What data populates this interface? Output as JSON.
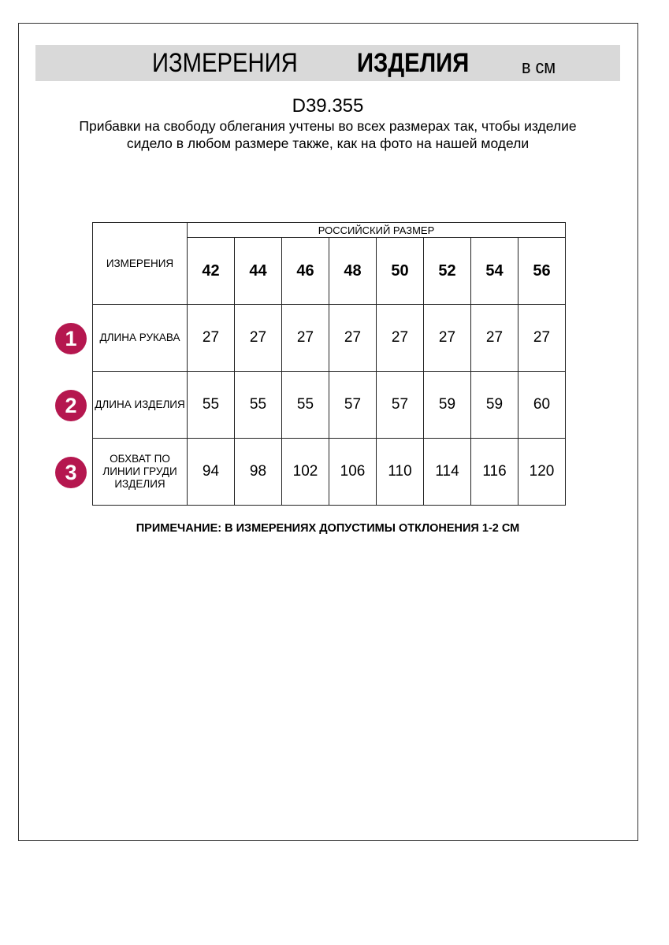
{
  "header": {
    "title_light": "ИЗМЕРЕНИЯ",
    "title_bold": "ИЗДЕЛИЯ",
    "units": "в см"
  },
  "article_code": "D39.355",
  "description": "Прибавки на свободу облегания учтены во всех размерах так, чтобы изделие сидело в любом размере также, как на фото на нашей модели",
  "table": {
    "corner_label": "ИЗМЕРЕНИЯ",
    "group_header": "РОССИЙСКИЙ РАЗМЕР",
    "sizes": [
      "42",
      "44",
      "46",
      "48",
      "50",
      "52",
      "54",
      "56"
    ],
    "rows": [
      {
        "marker": "1",
        "label": "ДЛИНА РУКАВА",
        "values": [
          "27",
          "27",
          "27",
          "27",
          "27",
          "27",
          "27",
          "27"
        ]
      },
      {
        "marker": "2",
        "label": "ДЛИНА ИЗДЕЛИЯ",
        "values": [
          "55",
          "55",
          "55",
          "57",
          "57",
          "59",
          "59",
          "60"
        ]
      },
      {
        "marker": "3",
        "label": "ОБХВАТ ПО ЛИНИИ ГРУДИ ИЗДЕЛИЯ",
        "values": [
          "94",
          "98",
          "102",
          "106",
          "110",
          "114",
          "116",
          "120"
        ]
      }
    ]
  },
  "note": "ПРИМЕЧАНИЕ: В ИЗМЕРЕНИЯХ ДОПУСТИМЫ ОТКЛОНЕНИЯ 1-2 СМ",
  "colors": {
    "marker": "#b5174f",
    "band": "#d9d9d9"
  }
}
